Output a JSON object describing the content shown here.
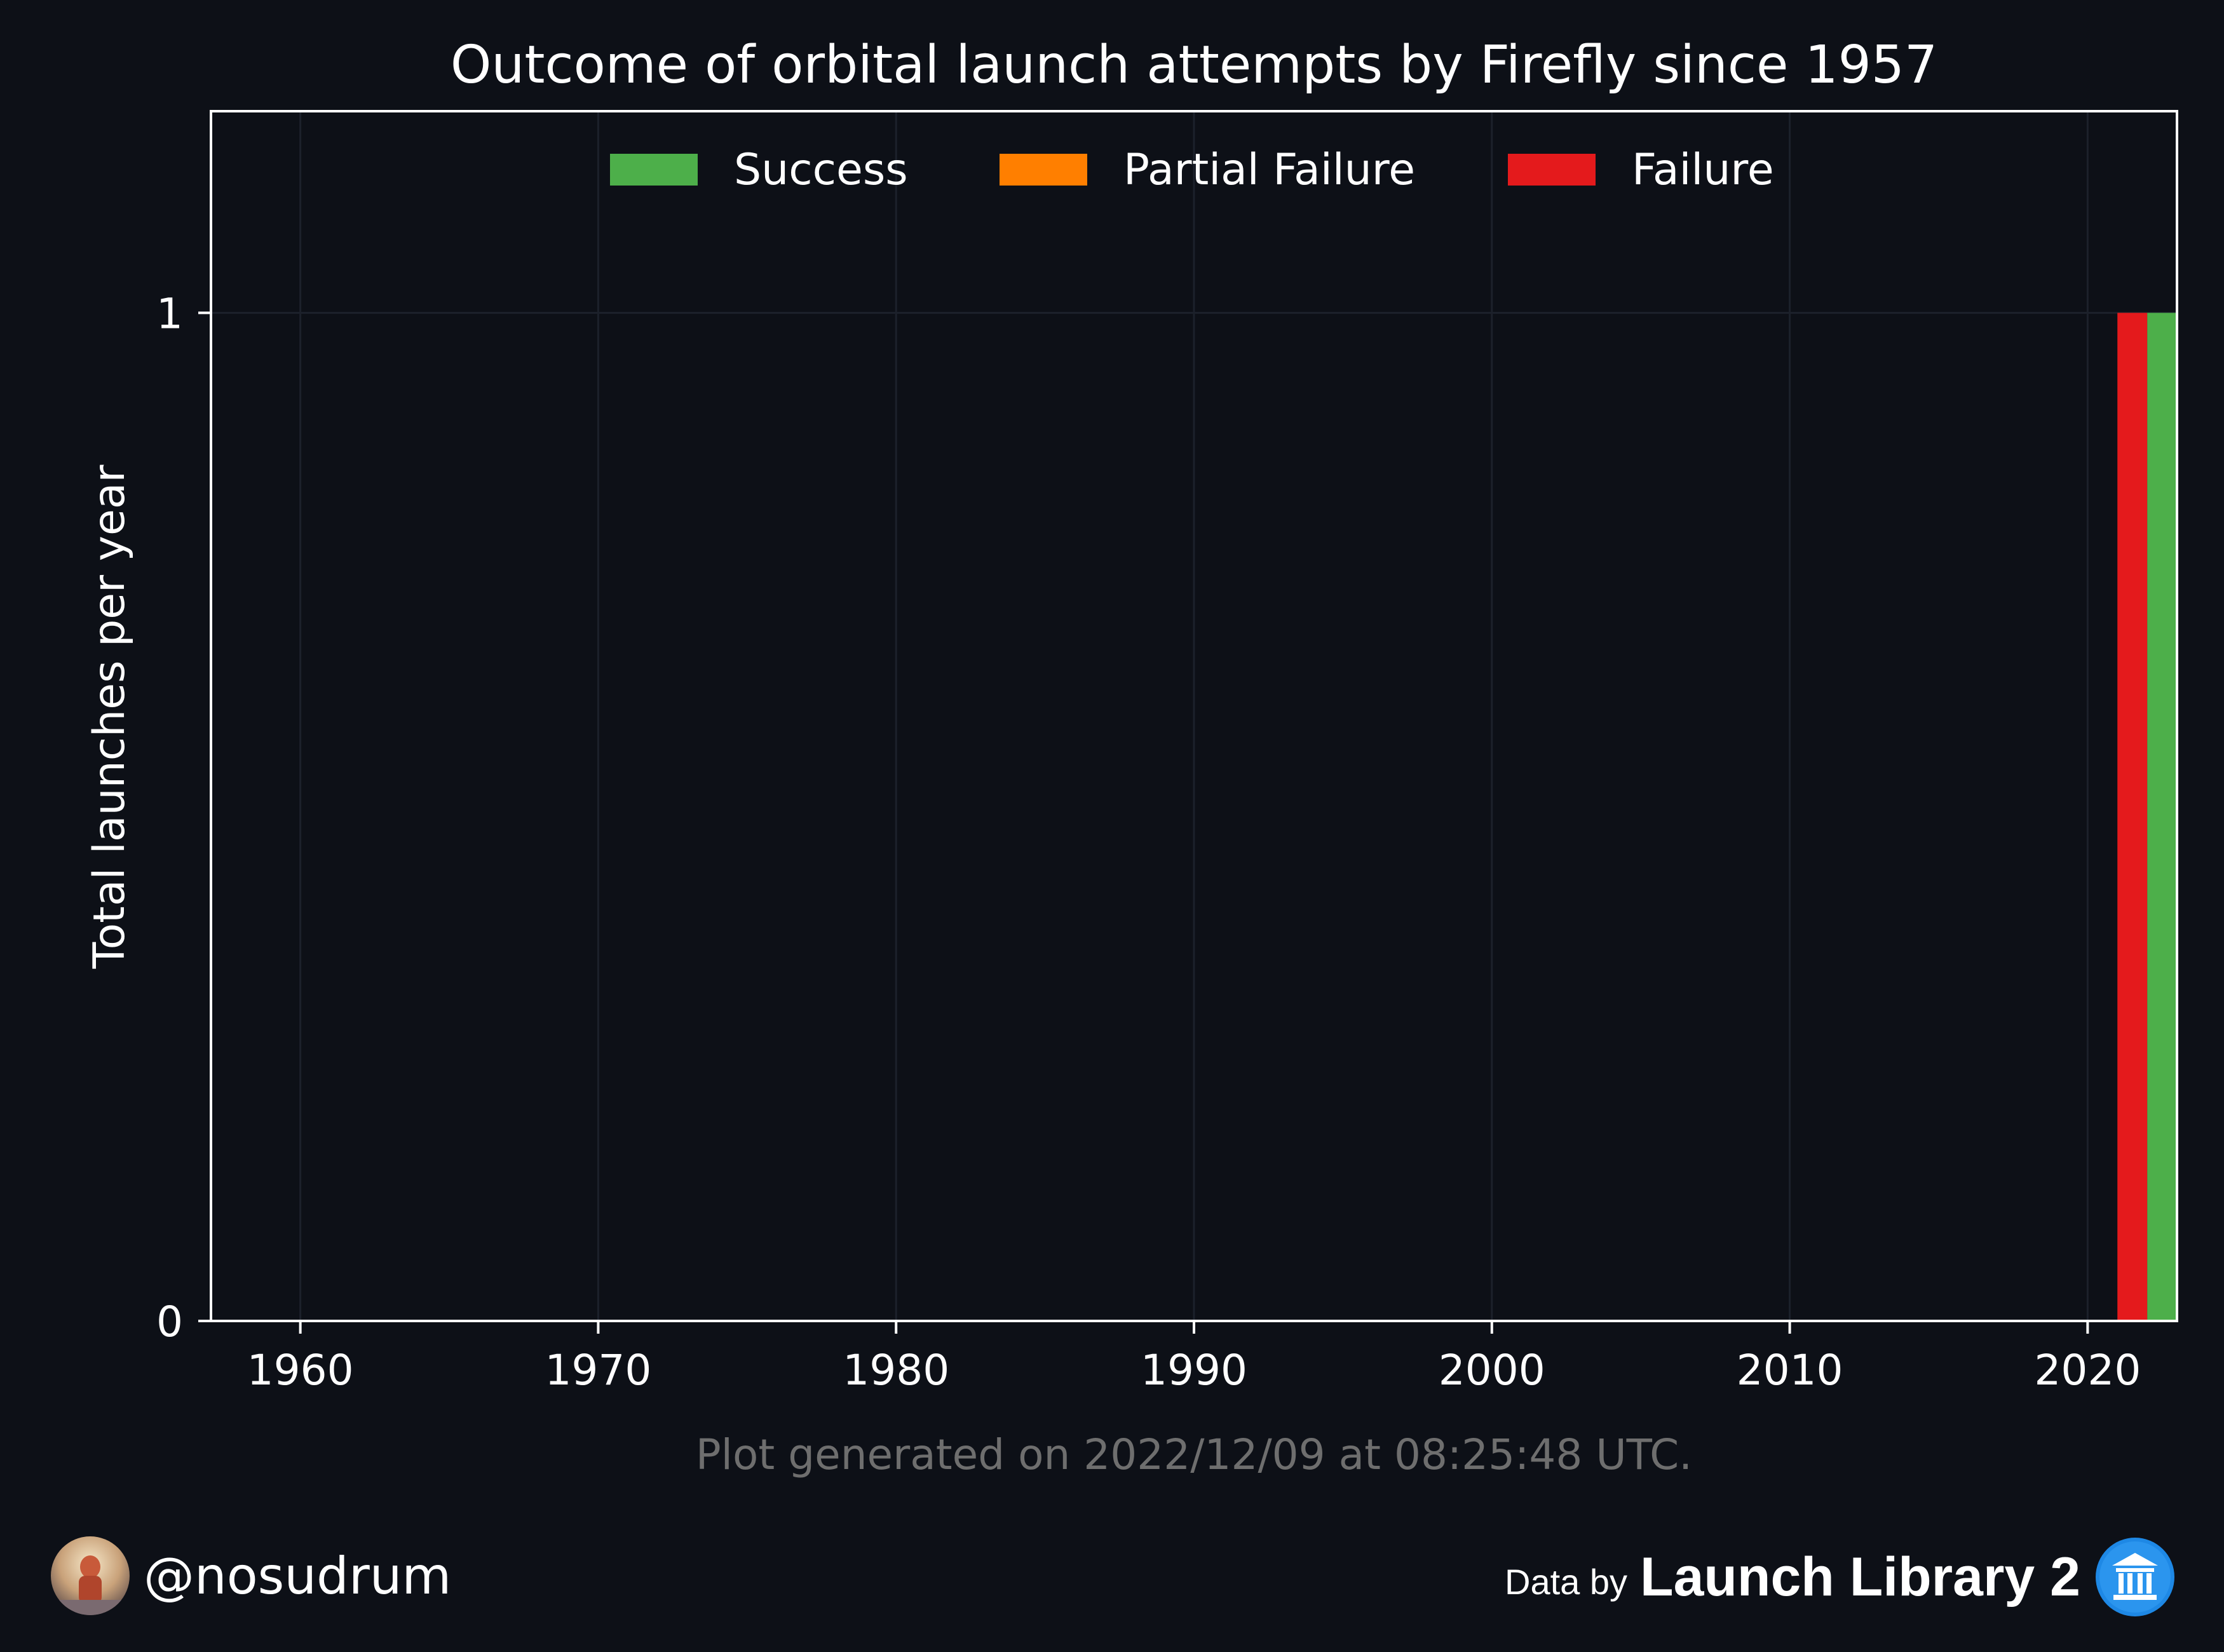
{
  "chart_data": {
    "type": "bar",
    "stacked": false,
    "title": "Outcome of orbital launch attempts by Firefly since 1957",
    "xlabel": "",
    "ylabel": "Total launches per year",
    "xlim": [
      1957,
      2023
    ],
    "ylim": [
      0,
      1.2
    ],
    "xticks": [
      1960,
      1970,
      1980,
      1990,
      2000,
      2010,
      2020
    ],
    "yticks": [
      0,
      1
    ],
    "grid": true,
    "legend_position": "top-center",
    "series": [
      {
        "name": "Success",
        "color": "#4daf4a",
        "points": [
          {
            "x": 2022,
            "y": 1
          }
        ]
      },
      {
        "name": "Partial Failure",
        "color": "#ff7f00",
        "points": []
      },
      {
        "name": "Failure",
        "color": "#e41a1c",
        "points": [
          {
            "x": 2021,
            "y": 1
          }
        ]
      }
    ]
  },
  "footnote": "Plot generated on 2022/12/09 at 08:25:48 UTC.",
  "author": {
    "handle": "@nosudrum"
  },
  "credit": {
    "prefix": "Data by",
    "brand": "Launch Library 2",
    "brand_icon": "museum-icon"
  },
  "colors": {
    "background": "#0d1017",
    "axis": "#ffffff",
    "grid": "#1c212b",
    "footnote": "#6e6e6e",
    "brand_blue": "#1e88e5"
  }
}
